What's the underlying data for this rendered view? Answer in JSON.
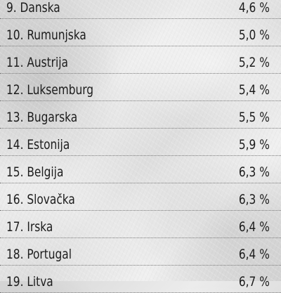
{
  "ranking": [
    {
      "label": "9. Danska",
      "value": "4,6 %"
    },
    {
      "label": "10. Rumunjska",
      "value": "5,0 %"
    },
    {
      "label": "11. Austrija",
      "value": "5,2 %"
    },
    {
      "label": "12. Luksemburg",
      "value": "5,4 %"
    },
    {
      "label": "13. Bugarska",
      "value": "5,5 %"
    },
    {
      "label": "14. Estonija",
      "value": "5,9 %"
    },
    {
      "label": "15. Belgija",
      "value": "6,3 %"
    },
    {
      "label": "16. Slovačka",
      "value": "6,3 %"
    },
    {
      "label": "17. Irska",
      "value": "6,4 %"
    },
    {
      "label": "18. Portugal",
      "value": "6,4 %"
    },
    {
      "label": "19. Litva",
      "value": "6,7 %"
    }
  ]
}
